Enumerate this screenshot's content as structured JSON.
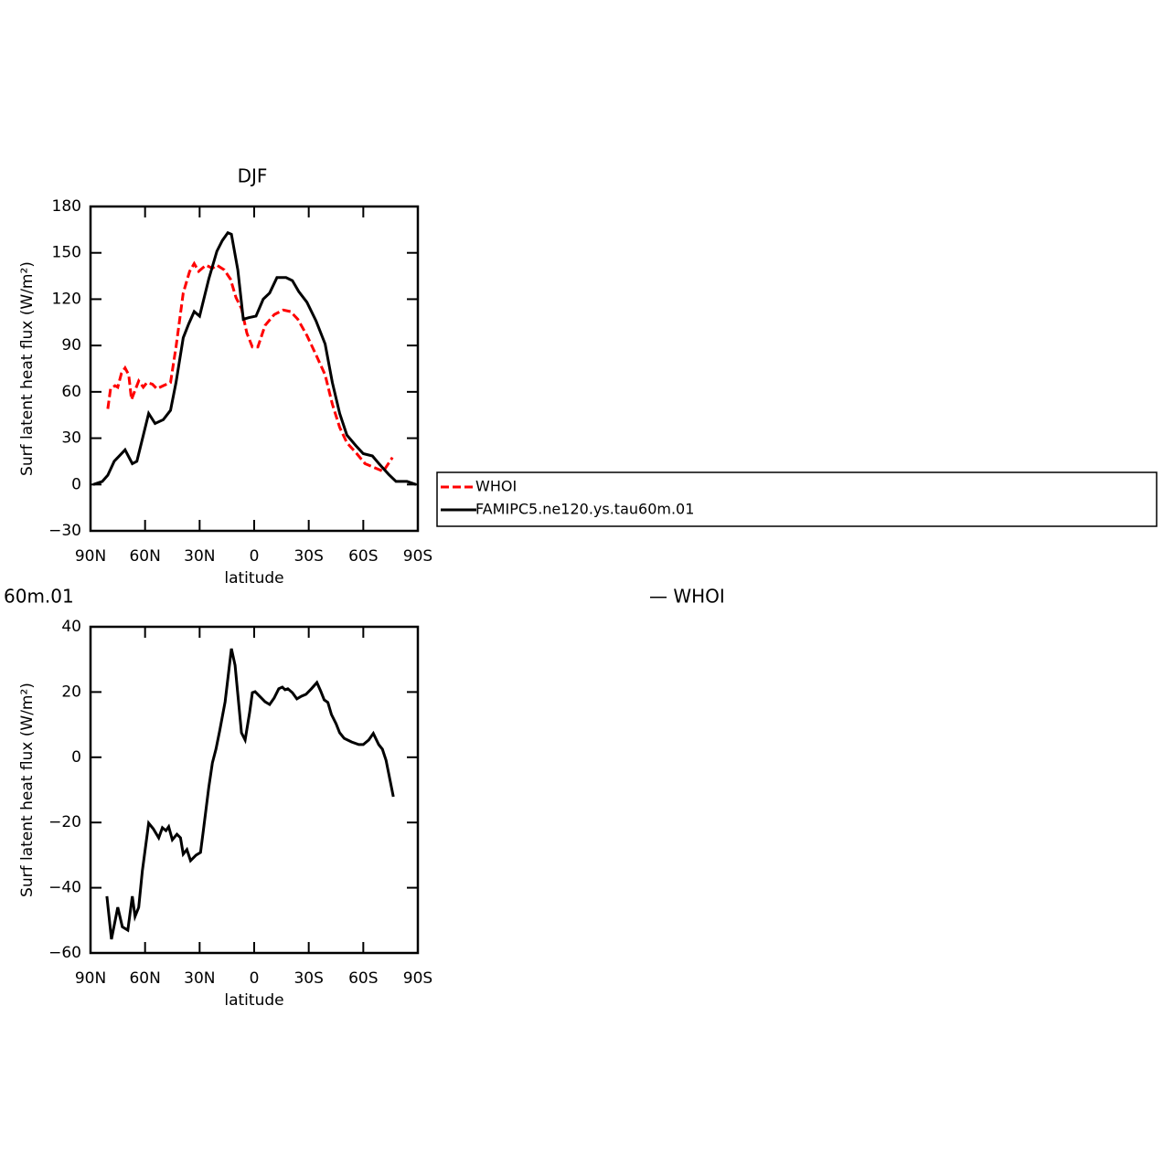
{
  "chart_data": [
    {
      "type": "line",
      "title": "DJF",
      "ylabel": "Surf latent heat flux (W/m²)",
      "xlabel": "latitude",
      "xlim": [
        90,
        -90
      ],
      "xticks": [
        {
          "value": 90,
          "label": "90N"
        },
        {
          "value": 60,
          "label": "60N"
        },
        {
          "value": 30,
          "label": "30N"
        },
        0,
        {
          "value": -30,
          "label": "30S"
        },
        {
          "value": -60,
          "label": "60S"
        },
        {
          "value": -90,
          "label": "90S"
        }
      ],
      "ylim": [
        -30,
        180
      ],
      "yticks": [
        {
          "value": -30,
          "label": "−30"
        },
        0,
        30,
        60,
        90,
        120,
        150,
        180
      ],
      "legend": "right",
      "series": [
        {
          "name": "WHOI",
          "color": "#ff0000",
          "line_style": "dashed",
          "x": [
            80.5,
            79,
            76.5,
            75,
            73,
            71,
            69,
            67.5,
            63.5,
            61,
            59,
            56,
            53.5,
            50,
            46,
            43,
            39,
            35.5,
            33,
            30.5,
            26.5,
            23,
            20.5,
            16.5,
            13,
            10,
            7,
            4,
            1,
            -2,
            -6,
            -11,
            -16,
            -20,
            -24,
            -29,
            -34,
            -39,
            -43,
            -47,
            -51,
            -56,
            -61,
            -66,
            -71,
            -76
          ],
          "values": [
            49,
            62,
            64,
            63,
            72,
            75.5,
            71,
            55,
            67,
            63,
            66,
            65,
            62,
            64,
            66,
            89,
            124,
            138,
            143,
            138,
            142,
            140,
            142,
            139,
            133,
            121,
            114,
            98,
            89,
            89,
            103,
            110,
            113,
            112,
            107,
            96.5,
            84,
            71,
            52,
            37,
            27,
            20.5,
            13.5,
            11,
            8.5,
            17.5
          ]
        },
        {
          "name": "FAMIPC5.ne120.ys.tau60m.01",
          "color": "#000000",
          "line_style": "solid",
          "x": [
            88.5,
            83.5,
            80.5,
            77,
            71,
            67,
            64.5,
            62,
            58,
            54.5,
            50,
            46,
            43,
            39,
            36,
            33,
            30,
            25,
            20.5,
            17.5,
            14.5,
            12.5,
            9,
            6,
            3,
            -1,
            -5,
            -8.5,
            -12.5,
            -17.5,
            -21,
            -24.5,
            -29,
            -34,
            -39,
            -43,
            -47,
            -51,
            -56,
            -60,
            -65,
            -69,
            -74,
            -78,
            -84,
            -89
          ],
          "values": [
            0,
            2,
            6,
            15,
            22.5,
            13.5,
            15,
            27,
            46,
            39.5,
            42,
            48,
            66,
            95,
            104,
            112,
            109,
            133,
            151,
            158,
            163,
            162,
            139,
            107,
            108,
            109,
            120,
            124,
            134,
            134,
            132,
            125,
            118,
            106,
            91,
            66,
            46,
            32,
            25,
            20,
            18.5,
            13,
            6.5,
            2,
            2,
            0
          ]
        }
      ]
    },
    {
      "type": "line",
      "title_left": "60m.01",
      "title_right": "— WHOI",
      "ylabel": "Surf latent heat flux (W/m²)",
      "xlabel": "latitude",
      "xlim": [
        90,
        -90
      ],
      "xticks": [
        {
          "value": 90,
          "label": "90N"
        },
        {
          "value": 60,
          "label": "60N"
        },
        {
          "value": 30,
          "label": "30N"
        },
        0,
        {
          "value": -30,
          "label": "30S"
        },
        {
          "value": -60,
          "label": "60S"
        },
        {
          "value": -90,
          "label": "90S"
        }
      ],
      "ylim": [
        -60,
        40
      ],
      "yticks": [
        {
          "value": -60,
          "label": "−60"
        },
        {
          "value": -40,
          "label": "−40"
        },
        {
          "value": -20,
          "label": "−20"
        },
        0,
        20,
        40
      ],
      "series": [
        {
          "color": "#000000",
          "line_style": "solid",
          "x": [
            81,
            78.5,
            75,
            72.5,
            69.5,
            67,
            65.5,
            63.5,
            61.5,
            58,
            55.5,
            52.5,
            50.5,
            48.5,
            47,
            45,
            42.5,
            40.5,
            39,
            37,
            35,
            32,
            29.5,
            28,
            25,
            23,
            21,
            19,
            16,
            12.5,
            10.5,
            7,
            5,
            2.5,
            1,
            -0.5,
            -3.5,
            -6,
            -8.5,
            -11,
            -13.5,
            -15.5,
            -17,
            -18.5,
            -21,
            -23.5,
            -26,
            -28.5,
            -31.5,
            -34.5,
            -36.5,
            -38.5,
            -40.5,
            -42.5,
            -45,
            -47,
            -49.5,
            -53.5,
            -57.5,
            -60,
            -63,
            -65.5,
            -68.5,
            -70.5,
            -72.5,
            -76.5
          ],
          "values": [
            -42.6,
            -55.8,
            -46,
            -52,
            -53,
            -42.6,
            -48.8,
            -46,
            -34.8,
            -20.2,
            -21.9,
            -24.7,
            -21.6,
            -22.5,
            -21.3,
            -25.3,
            -23.6,
            -24.7,
            -29.7,
            -28.3,
            -31.7,
            -30,
            -29.2,
            -22.7,
            -9.3,
            -1.7,
            2.5,
            8,
            17,
            33.3,
            28.2,
            7.5,
            5.3,
            13.7,
            19.8,
            20.1,
            18.4,
            17,
            16.2,
            18.2,
            21,
            21.5,
            20.7,
            21,
            19.8,
            17.9,
            18.7,
            19.3,
            21,
            22.9,
            20.4,
            17.6,
            16.8,
            13.1,
            10.3,
            7.5,
            5.8,
            4.7,
            3.9,
            3.9,
            5.3,
            7.3,
            3.9,
            2.5,
            -0.9,
            -12.1
          ]
        }
      ]
    }
  ]
}
